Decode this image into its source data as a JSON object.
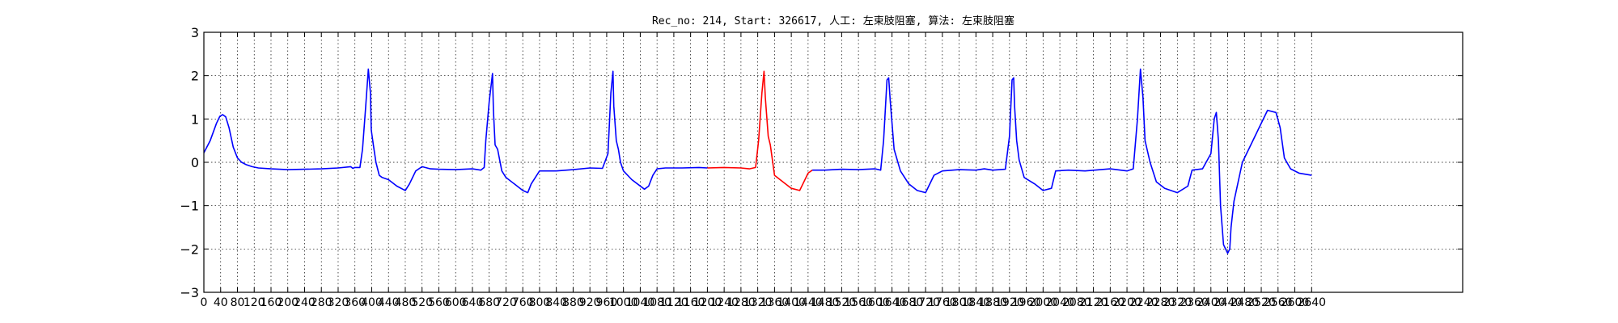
{
  "chart_data": {
    "type": "line",
    "title": "Rec_no: 214, Start: 326617, 人工: 左束肢阻塞, 算法: 左束肢阻塞",
    "xlabel": "",
    "ylabel": "",
    "xlim": [
      0,
      3000
    ],
    "ylim": [
      -3,
      3
    ],
    "grid": true,
    "y_ticks": [
      3,
      2,
      1,
      0,
      -1,
      -2,
      -3
    ],
    "y_tick_labels": [
      "3",
      "2",
      "1",
      "0",
      "−1",
      "−2",
      "−3"
    ],
    "x_ticks": [
      0,
      40,
      80,
      120,
      160,
      200,
      240,
      280,
      320,
      360,
      400,
      440,
      480,
      520,
      560,
      600,
      640,
      680,
      720,
      760,
      800,
      840,
      880,
      920,
      960,
      1000,
      1040,
      1080,
      1120,
      1160,
      1200,
      1240,
      1280,
      1320,
      1360,
      1400,
      1440,
      1480,
      1520,
      1560,
      1600,
      1640,
      1680,
      1720,
      1760,
      1800,
      1840,
      1880,
      1920,
      1960,
      2000,
      2040,
      2080,
      2120,
      2160,
      2200,
      2240,
      2280,
      2320,
      2360,
      2400,
      2440,
      2480,
      2520,
      2560,
      2600,
      2640
    ],
    "series": [
      {
        "color": "#0000ff",
        "x": [
          0,
          15,
          30,
          38,
          45,
          52,
          60,
          70,
          80,
          90,
          100,
          115,
          130,
          160,
          200,
          240,
          280,
          320,
          350,
          355,
          360,
          372,
          378,
          385,
          392,
          397,
          399,
          404,
          410,
          418,
          425,
          440,
          460,
          480,
          490,
          505,
          520,
          540,
          560,
          600,
          640,
          660,
          668,
          672,
          680,
          688,
          690,
          694,
          700,
          705,
          710,
          720,
          740,
          760,
          772,
          780,
          800,
          840,
          880,
          920,
          950,
          963,
          970,
          975,
          977,
          983,
          988,
          993,
          1000,
          1020,
          1050,
          1060,
          1070,
          1080,
          1100,
          1140,
          1180,
          1200
        ],
        "y": [
          0.22,
          0.5,
          0.9,
          1.06,
          1.1,
          1.05,
          0.8,
          0.35,
          0.1,
          0.0,
          -0.05,
          -0.1,
          -0.13,
          -0.15,
          -0.17,
          -0.16,
          -0.15,
          -0.13,
          -0.1,
          -0.14,
          -0.12,
          -0.12,
          0.3,
          1.2,
          2.15,
          1.6,
          0.75,
          0.4,
          0.0,
          -0.3,
          -0.35,
          -0.4,
          -0.55,
          -0.65,
          -0.5,
          -0.2,
          -0.1,
          -0.15,
          -0.16,
          -0.17,
          -0.15,
          -0.18,
          -0.12,
          0.5,
          1.4,
          2.05,
          1.2,
          0.4,
          0.3,
          0.05,
          -0.2,
          -0.35,
          -0.5,
          -0.65,
          -0.7,
          -0.5,
          -0.2,
          -0.2,
          -0.17,
          -0.13,
          -0.14,
          0.2,
          1.6,
          2.1,
          1.3,
          0.5,
          0.3,
          0.0,
          -0.2,
          -0.4,
          -0.62,
          -0.55,
          -0.3,
          -0.15,
          -0.13,
          -0.13,
          -0.12,
          -0.13
        ]
      },
      {
        "color": "#ff0000",
        "x": [
          1200,
          1240,
          1280,
          1300,
          1315,
          1322,
          1330,
          1335,
          1338,
          1345,
          1350,
          1360,
          1380,
          1400,
          1420,
          1430,
          1440,
          1450
        ],
        "y": [
          -0.13,
          -0.12,
          -0.13,
          -0.15,
          -0.12,
          0.5,
          1.6,
          2.1,
          1.5,
          0.6,
          0.4,
          -0.3,
          -0.45,
          -0.6,
          -0.65,
          -0.45,
          -0.25,
          -0.18
        ]
      },
      {
        "color": "#0000ff",
        "x": [
          1450,
          1480,
          1520,
          1560,
          1600,
          1613,
          1620,
          1628,
          1632,
          1636,
          1645,
          1660,
          1680,
          1700,
          1720,
          1740,
          1760,
          1800,
          1840,
          1860,
          1880,
          1910,
          1920,
          1926,
          1930,
          1932,
          1937,
          1943,
          1955,
          1980,
          2000,
          2020,
          2030,
          2060,
          2100,
          2160,
          2200,
          2215,
          2225,
          2232,
          2238,
          2243,
          2255,
          2270,
          2290,
          2320,
          2345,
          2355,
          2380,
          2400,
          2408,
          2413,
          2418,
          2423,
          2430,
          2440,
          2445,
          2448,
          2455,
          2465,
          2475,
          2495,
          2515,
          2535,
          2555,
          2565,
          2575,
          2590,
          2610,
          2640
        ],
        "y": [
          -0.18,
          -0.18,
          -0.16,
          -0.17,
          -0.15,
          -0.18,
          0.5,
          1.9,
          1.95,
          1.4,
          0.3,
          -0.2,
          -0.5,
          -0.65,
          -0.7,
          -0.3,
          -0.2,
          -0.17,
          -0.18,
          -0.15,
          -0.18,
          -0.16,
          0.6,
          1.9,
          1.95,
          1.3,
          0.5,
          0.05,
          -0.35,
          -0.5,
          -0.65,
          -0.6,
          -0.2,
          -0.18,
          -0.2,
          -0.15,
          -0.2,
          -0.15,
          1.0,
          2.15,
          1.5,
          0.5,
          0.0,
          -0.45,
          -0.6,
          -0.7,
          -0.55,
          -0.18,
          -0.15,
          0.2,
          1.0,
          1.15,
          0.5,
          -1.0,
          -1.9,
          -2.1,
          -2.0,
          -1.5,
          -0.9,
          -0.45,
          0.0,
          0.4,
          0.8,
          1.2,
          1.15,
          0.8,
          0.1,
          -0.15,
          -0.25,
          -0.3
        ]
      }
    ]
  }
}
